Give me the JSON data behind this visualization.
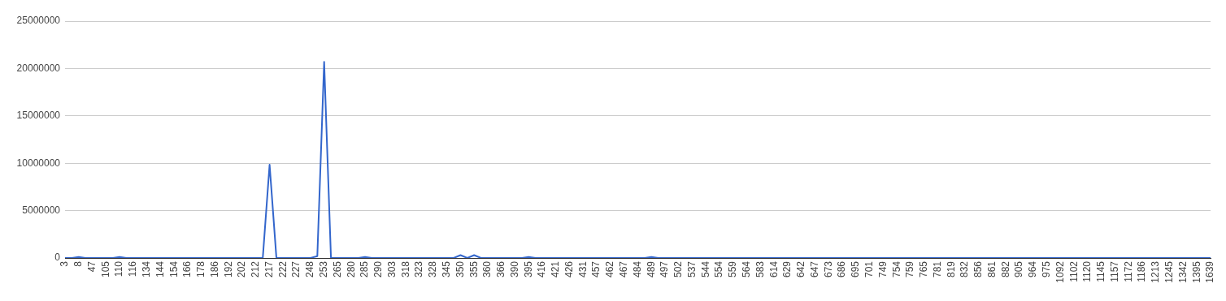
{
  "chart_data": {
    "type": "line",
    "categories": [
      "3",
      null,
      "8",
      null,
      "47",
      null,
      "105",
      null,
      "110",
      null,
      "116",
      null,
      "134",
      null,
      "144",
      null,
      "154",
      null,
      "166",
      null,
      "178",
      null,
      "186",
      null,
      "192",
      null,
      "202",
      null,
      "212",
      null,
      "217",
      null,
      "222",
      null,
      "227",
      null,
      "248",
      null,
      "253",
      null,
      "265",
      null,
      "280",
      null,
      "285",
      null,
      "290",
      null,
      "303",
      null,
      "318",
      null,
      "323",
      null,
      "328",
      null,
      "345",
      null,
      "350",
      null,
      "355",
      null,
      "360",
      null,
      "366",
      null,
      "390",
      null,
      "395",
      null,
      "416",
      null,
      "421",
      null,
      "426",
      null,
      "431",
      null,
      "457",
      null,
      "462",
      null,
      "467",
      null,
      "484",
      null,
      "489",
      null,
      "497",
      null,
      "502",
      null,
      "537",
      null,
      "544",
      null,
      "554",
      null,
      "559",
      null,
      "564",
      null,
      "583",
      null,
      "614",
      null,
      "629",
      null,
      "642",
      null,
      "647",
      null,
      "673",
      null,
      "686",
      null,
      "695",
      null,
      "701",
      null,
      "749",
      null,
      "754",
      null,
      "759",
      null,
      "765",
      null,
      "781",
      null,
      "819",
      null,
      "832",
      null,
      "856",
      null,
      "861",
      null,
      "882",
      null,
      "905",
      null,
      "964",
      null,
      "975",
      null,
      "1092",
      null,
      "1102",
      null,
      "1120",
      null,
      "1145",
      null,
      "1157",
      null,
      "1172",
      null,
      "1186",
      null,
      "1213",
      null,
      "1245",
      null,
      "1342",
      null,
      "1395",
      null,
      "1639"
    ],
    "series": [
      {
        "color": "#3366cc",
        "values": [
          0,
          0,
          100000,
          0,
          0,
          0,
          0,
          0,
          100000,
          0,
          0,
          0,
          0,
          0,
          0,
          0,
          0,
          0,
          0,
          0,
          0,
          0,
          0,
          0,
          0,
          0,
          0,
          0,
          0,
          0,
          9850000,
          0,
          0,
          0,
          0,
          0,
          0,
          200000,
          20700000,
          0,
          0,
          0,
          0,
          0,
          100000,
          0,
          0,
          0,
          0,
          0,
          0,
          0,
          0,
          0,
          0,
          0,
          0,
          0,
          300000,
          0,
          300000,
          0,
          0,
          0,
          0,
          0,
          0,
          0,
          100000,
          0,
          0,
          0,
          0,
          0,
          0,
          0,
          0,
          0,
          0,
          0,
          0,
          0,
          0,
          0,
          0,
          0,
          100000,
          0,
          0,
          0,
          0,
          0,
          0,
          0,
          0,
          0,
          0,
          0,
          0,
          0,
          0,
          0,
          0,
          0,
          0,
          0,
          0,
          0,
          0,
          0,
          0,
          0,
          0,
          0,
          0,
          0,
          0,
          0,
          0,
          0,
          0,
          0,
          0,
          0,
          0,
          0,
          0,
          0,
          0,
          0,
          0,
          0,
          0,
          0,
          0,
          0,
          0,
          0,
          0,
          0,
          0,
          0,
          0,
          0,
          0,
          0,
          0,
          0,
          0,
          0,
          0,
          0,
          0,
          0,
          0,
          0,
          0,
          0,
          0,
          0,
          0,
          0,
          0,
          0,
          0,
          0,
          0,
          0,
          0
        ]
      }
    ],
    "ylim": [
      0,
      25000000
    ],
    "yticks": [
      0,
      5000000,
      10000000,
      15000000,
      20000000,
      25000000
    ],
    "grid": "y",
    "legend": false,
    "marker": "none",
    "line_style": "solid"
  }
}
